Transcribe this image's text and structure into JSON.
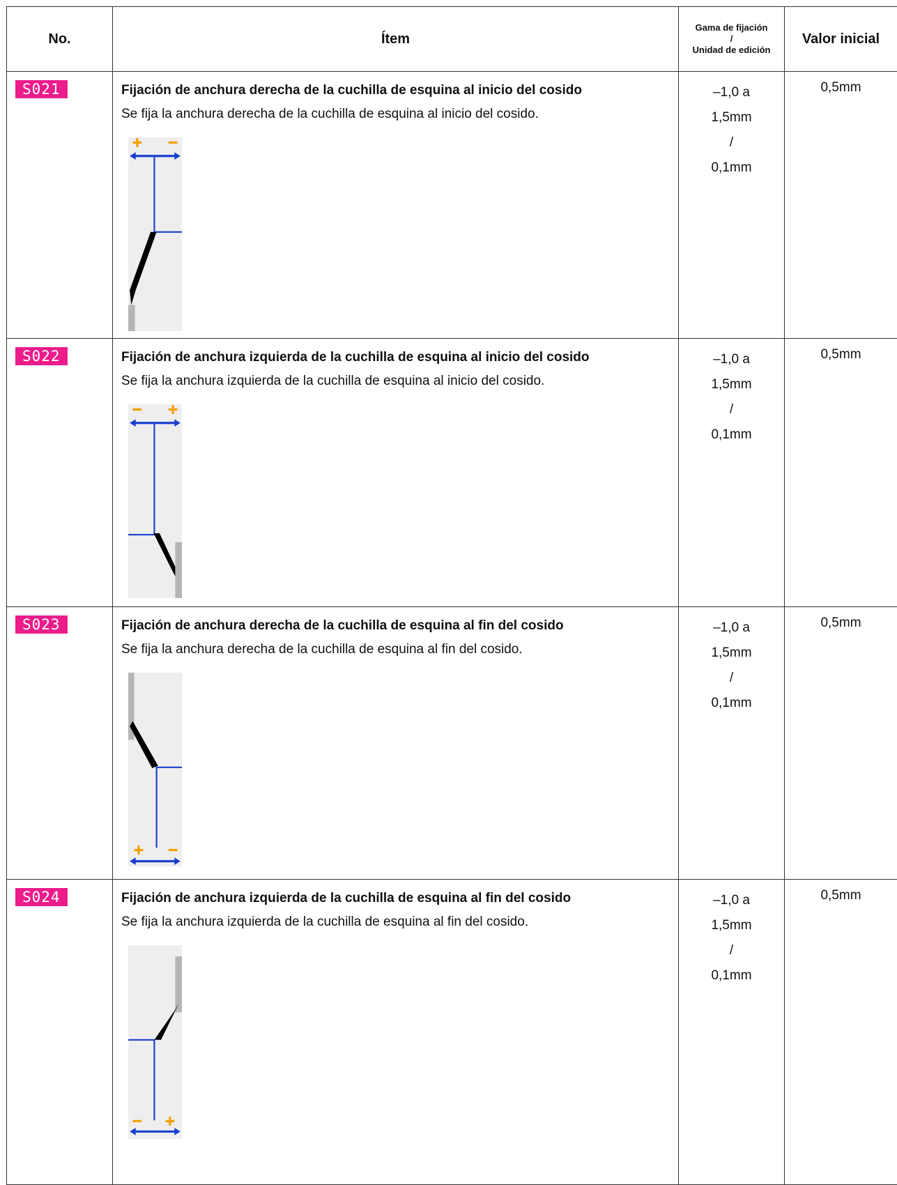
{
  "table": {
    "header": [
      "No.",
      "Ítem",
      [
        "Gama de fijación",
        "/",
        "Unidad de edición"
      ],
      "Valor inicial"
    ],
    "rows": [
      {
        "code": "S021",
        "title": "Fijación de anchura derecha de la cuchilla de esquina al inicio del cosido",
        "description": "Se fija la anchura derecha de la cuchilla de esquina al inicio del cosido.",
        "range": [
          "–1,0 a",
          "1,5mm",
          "/",
          "0,1mm"
        ],
        "initial": "0,5mm"
      },
      {
        "code": "S022",
        "title": "Fijación de anchura izquierda de la cuchilla de esquina al inicio del cosido",
        "description": "Se fija la anchura izquierda de la cuchilla de esquina al inicio del cosido.",
        "range": [
          "–1,0 a",
          "1,5mm",
          "/",
          "0,1mm"
        ],
        "initial": "0,5mm"
      },
      {
        "code": "S023",
        "title": "Fijación de anchura derecha de la cuchilla de esquina al fin del cosido",
        "description": "Se fija la anchura derecha de la cuchilla de esquina al fin del cosido.",
        "range": [
          "–1,0 a",
          "1,5mm",
          "/",
          "0,1mm"
        ],
        "initial": "0,5mm"
      },
      {
        "code": "S024",
        "title": "Fijación de anchura izquierda de la cuchilla de esquina al fin del cosido",
        "description": "Se fija la anchura izquierda de la cuchilla de esquina al fin del cosido.",
        "range": [
          "–1,0 a",
          "1,5mm",
          "/",
          "0,1mm"
        ],
        "initial": "0,5mm"
      }
    ]
  }
}
